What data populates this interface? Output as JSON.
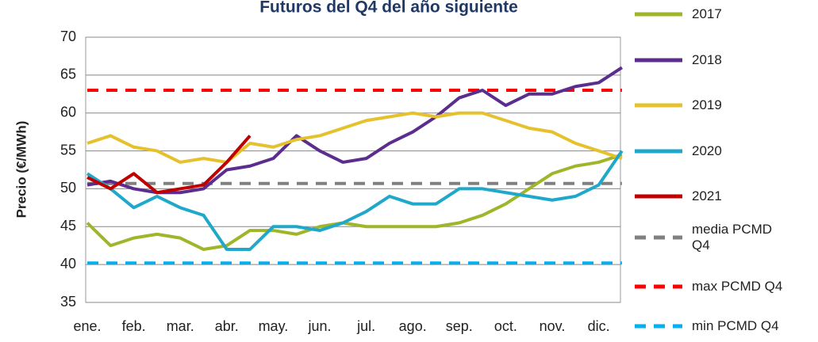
{
  "chart_data": {
    "type": "line",
    "title": "Futuros del Q4 del año siguiente",
    "y_label": "Precio (€/MWh)",
    "categories": [
      "ene.",
      null,
      "feb.",
      null,
      "mar.",
      null,
      "abr.",
      null,
      "may.",
      null,
      "jun.",
      null,
      "jul.",
      null,
      "ago.",
      null,
      "sep.",
      null,
      "oct.",
      null,
      "nov.",
      null,
      "dic.",
      null
    ],
    "ylim": [
      35,
      70
    ],
    "yticks": [
      35,
      40,
      45,
      50,
      55,
      60,
      65,
      70
    ],
    "grid": true,
    "legend": "right",
    "series": [
      {
        "name": "2017",
        "color": "#9fb62a",
        "values": [
          45.5,
          42.5,
          43.5,
          44,
          43.5,
          42,
          42.5,
          44.5,
          44.5,
          44,
          45,
          45.5,
          45,
          45,
          45,
          45,
          45.5,
          46.5,
          48,
          50,
          52,
          53,
          53.5,
          54.5
        ]
      },
      {
        "name": "2018",
        "color": "#5b2d8e",
        "values": [
          50.5,
          51,
          50,
          49.5,
          49.5,
          50,
          52.5,
          53,
          54,
          57,
          55,
          53.5,
          54,
          56,
          57.5,
          59.5,
          62,
          63,
          61,
          62.5,
          62.5,
          63.5,
          64,
          66
        ]
      },
      {
        "name": "2019",
        "color": "#e6c12e",
        "values": [
          56,
          57,
          55.5,
          55,
          53.5,
          54,
          53.5,
          56,
          55.5,
          56.5,
          57,
          58,
          59,
          59.5,
          60,
          59.5,
          60,
          60,
          59,
          58,
          57.5,
          56,
          55,
          54
        ]
      },
      {
        "name": "2020",
        "color": "#1fa8c9",
        "values": [
          52,
          50,
          47.5,
          49,
          47.5,
          46.5,
          42,
          42,
          45,
          45,
          44.5,
          45.5,
          47,
          49,
          48,
          48,
          50,
          50,
          49.5,
          49,
          48.5,
          49,
          50.5,
          55
        ]
      },
      {
        "name": "2021",
        "color": "#c00000",
        "values": [
          51.5,
          50,
          52,
          49.5,
          50,
          50.5,
          53.5,
          57,
          null,
          null,
          null,
          null,
          null,
          null,
          null,
          null,
          null,
          null,
          null,
          null,
          null,
          null,
          null,
          null
        ]
      },
      {
        "name": "media PCMD Q4",
        "color": "#808080",
        "dashed": true,
        "values": [
          50.7,
          50.7,
          50.7,
          50.7,
          50.7,
          50.7,
          50.7,
          50.7,
          50.7,
          50.7,
          50.7,
          50.7,
          50.7,
          50.7,
          50.7,
          50.7,
          50.7,
          50.7,
          50.7,
          50.7,
          50.7,
          50.7,
          50.7,
          50.7
        ]
      },
      {
        "name": "max PCMD Q4",
        "color": "#ff0000",
        "dashed": true,
        "values": [
          63,
          63,
          63,
          63,
          63,
          63,
          63,
          63,
          63,
          63,
          63,
          63,
          63,
          63,
          63,
          63,
          63,
          63,
          63,
          63,
          63,
          63,
          63,
          63
        ]
      },
      {
        "name": "min PCMD Q4",
        "color": "#00b0f0",
        "dashed": true,
        "values": [
          40.2,
          40.2,
          40.2,
          40.2,
          40.2,
          40.2,
          40.2,
          40.2,
          40.2,
          40.2,
          40.2,
          40.2,
          40.2,
          40.2,
          40.2,
          40.2,
          40.2,
          40.2,
          40.2,
          40.2,
          40.2,
          40.2,
          40.2,
          40.2
        ]
      }
    ]
  }
}
